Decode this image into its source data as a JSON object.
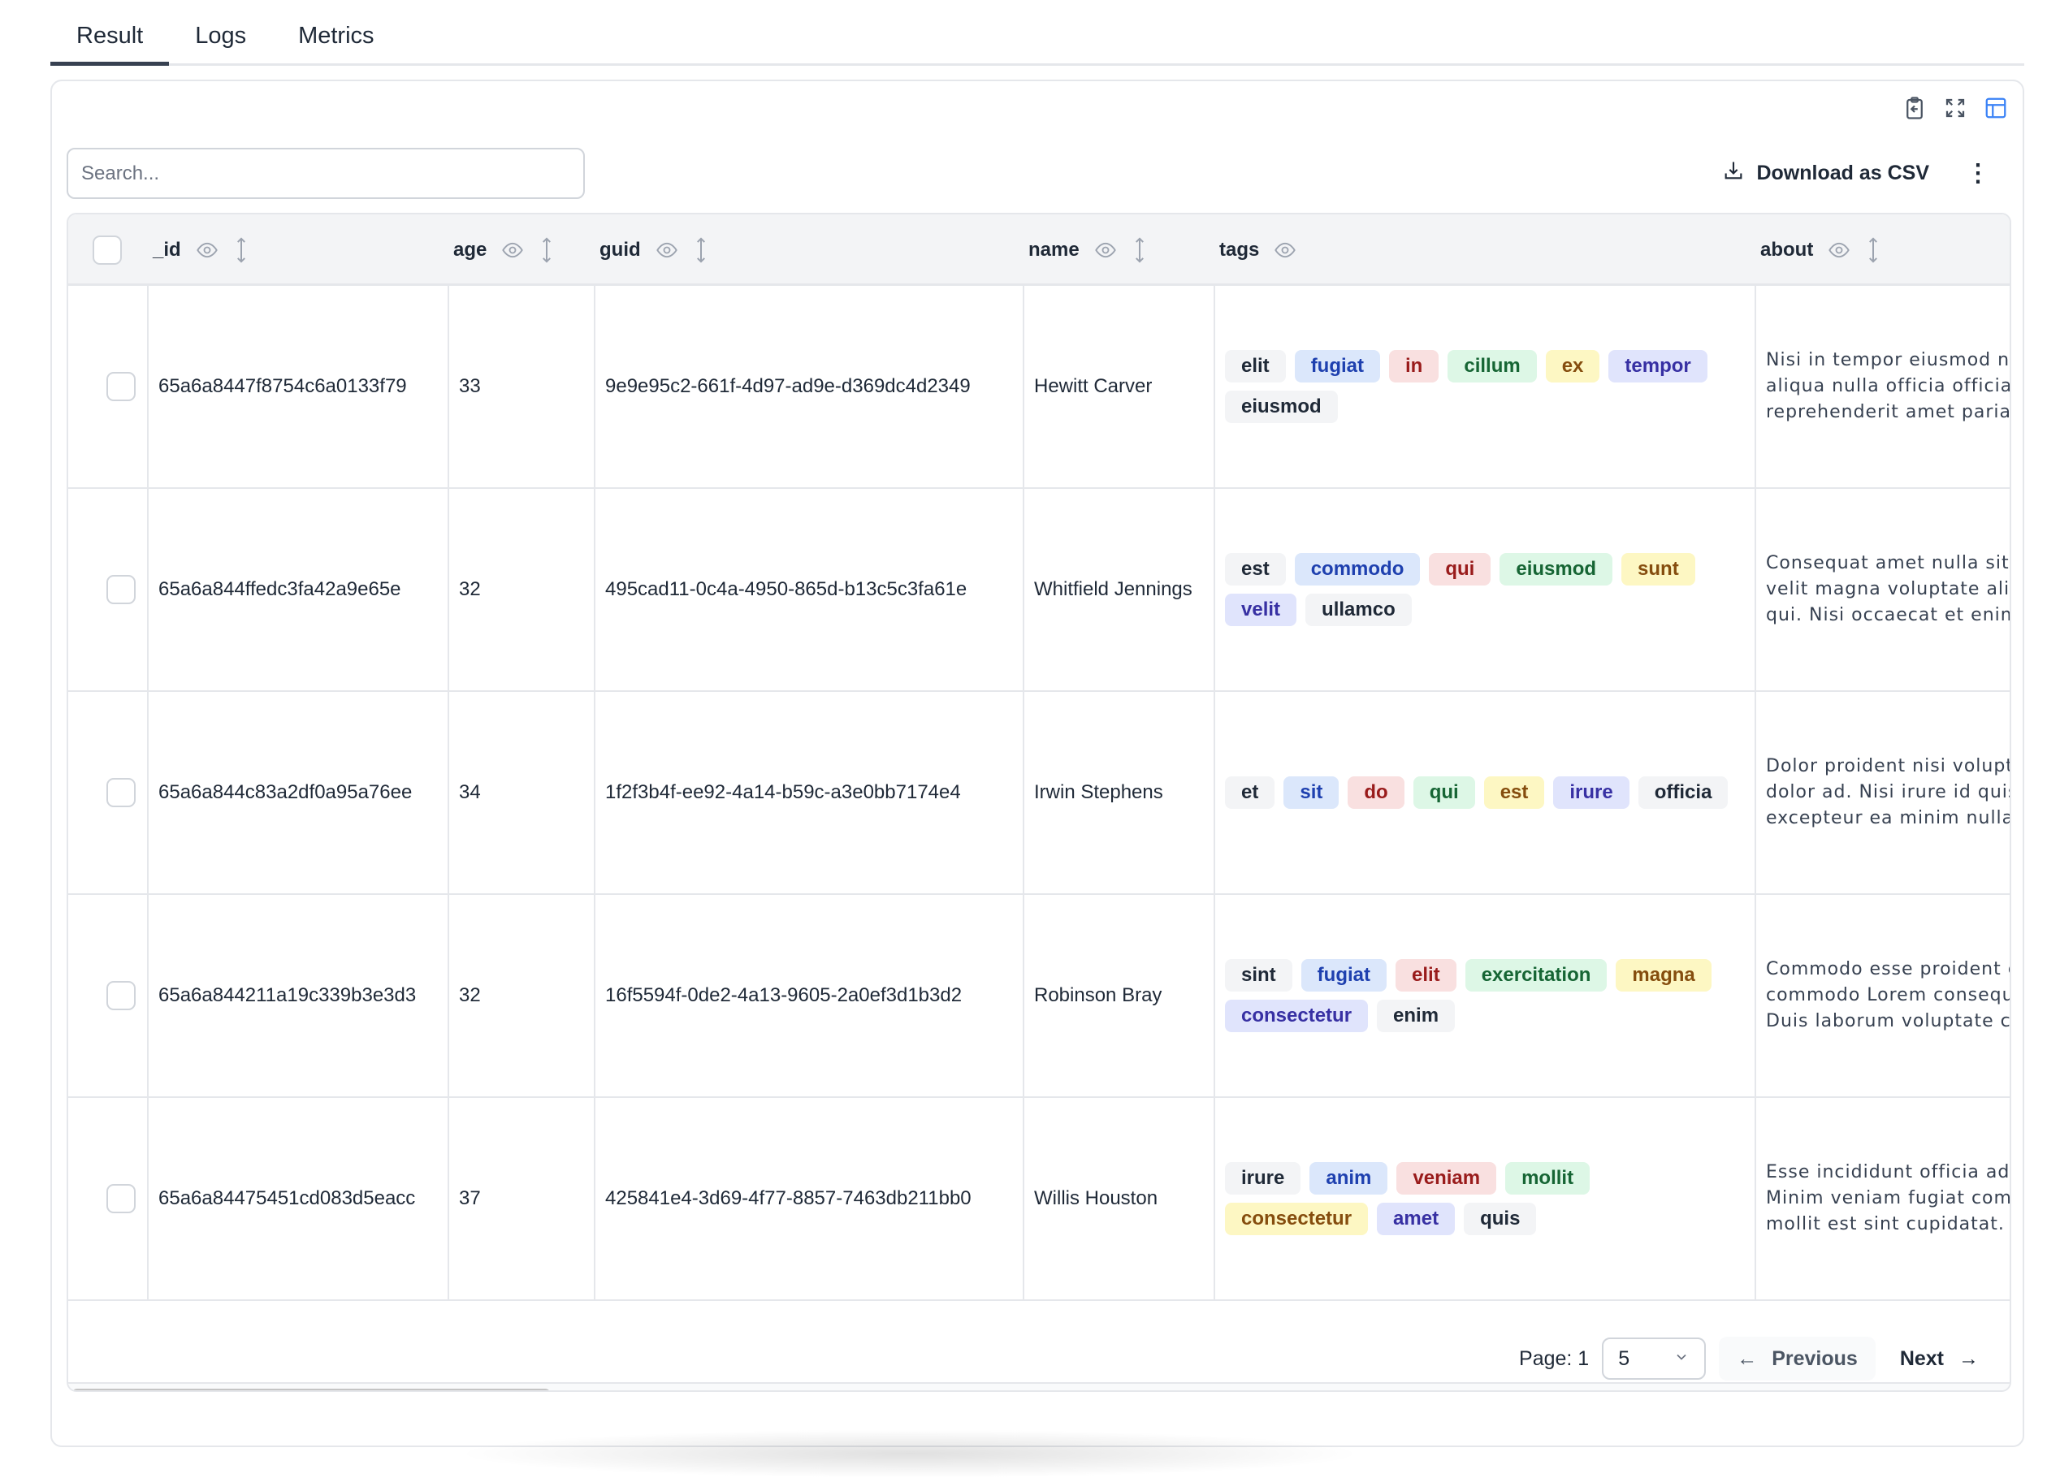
{
  "tabs": [
    {
      "label": "Result",
      "active": true
    },
    {
      "label": "Logs",
      "active": false
    },
    {
      "label": "Metrics",
      "active": false
    }
  ],
  "toolbar": {
    "icons": [
      "clipboard-import-icon",
      "expand-icon",
      "table-layout-icon"
    ],
    "search_placeholder": "Search...",
    "download_label": "Download as CSV",
    "more_icon": "⋮"
  },
  "table": {
    "columns": [
      {
        "key": "_id",
        "label": "_id",
        "sortable": true
      },
      {
        "key": "age",
        "label": "age",
        "sortable": true
      },
      {
        "key": "guid",
        "label": "guid",
        "sortable": true
      },
      {
        "key": "name",
        "label": "name",
        "sortable": true
      },
      {
        "key": "tags",
        "label": "tags",
        "sortable": false
      },
      {
        "key": "about",
        "label": "about",
        "sortable": true
      }
    ],
    "rows": [
      {
        "_id": "65a6a8447f8754c6a0133f79",
        "age": "33",
        "guid": "9e9e95c2-661f-4d97-ad9e-d369dc4d2349",
        "name": "Hewitt Carver",
        "tags": [
          "elit",
          "fugiat",
          "in",
          "cillum",
          "ex",
          "tempor",
          "eiusmod"
        ],
        "about": [
          "Nisi in tempor eiusmod null",
          "aliqua nulla officia officia. A",
          "reprehenderit amet pariatu"
        ]
      },
      {
        "_id": "65a6a844ffedc3fa42a9e65e",
        "age": "32",
        "guid": "495cad11-0c4a-4950-865d-b13c5c3fa61e",
        "name": "Whitfield Jennings",
        "tags": [
          "est",
          "commodo",
          "qui",
          "eiusmod",
          "sunt",
          "velit",
          "ullamco"
        ],
        "about": [
          "Consequat amet nulla sit a",
          "velit magna voluptate aliqu",
          "qui. Nisi occaecat et enim a"
        ]
      },
      {
        "_id": "65a6a844c83a2df0a95a76ee",
        "age": "34",
        "guid": "1f2f3b4f-ee92-4a14-b59c-a3e0bb7174e4",
        "name": "Irwin Stephens",
        "tags": [
          "et",
          "sit",
          "do",
          "qui",
          "est",
          "irure",
          "officia"
        ],
        "about": [
          "Dolor proident nisi voluptat",
          "dolor ad. Nisi irure id quis e",
          "excepteur ea minim nulla u"
        ]
      },
      {
        "_id": "65a6a844211a19c339b3e3d3",
        "age": "32",
        "guid": "16f5594f-0de2-4a13-9605-2a0ef3d1b3d2",
        "name": "Robinson Bray",
        "tags": [
          "sint",
          "fugiat",
          "elit",
          "exercitation",
          "magna",
          "consectetur",
          "enim"
        ],
        "about": [
          "Commodo esse proident ex",
          "commodo Lorem consequa",
          "Duis laborum voluptate cor"
        ]
      },
      {
        "_id": "65a6a84475451cd083d5eacc",
        "age": "37",
        "guid": "425841e4-3d69-4f77-8857-7463db211bb0",
        "name": "Willis Houston",
        "tags": [
          "irure",
          "anim",
          "veniam",
          "mollit",
          "consectetur",
          "amet",
          "quis"
        ],
        "about": [
          "Esse incididunt officia adip",
          "Minim veniam fugiat comm",
          "mollit est sint cupidatat. De"
        ]
      }
    ]
  },
  "tag_palette": [
    {
      "bg": "#f3f4f6",
      "fg": "#1f2937"
    },
    {
      "bg": "#dbe7fb",
      "fg": "#1e40af"
    },
    {
      "bg": "#f9e0e0",
      "fg": "#991b1b"
    },
    {
      "bg": "#ddf7e6",
      "fg": "#166534"
    },
    {
      "bg": "#fdf7c3",
      "fg": "#854d0e"
    },
    {
      "bg": "#e0e4fc",
      "fg": "#3730a3"
    }
  ],
  "pagination": {
    "page_label": "Page: 1",
    "page_size": "5",
    "previous_label": "Previous",
    "next_label": "Next"
  },
  "horizontal_scroll": 0
}
